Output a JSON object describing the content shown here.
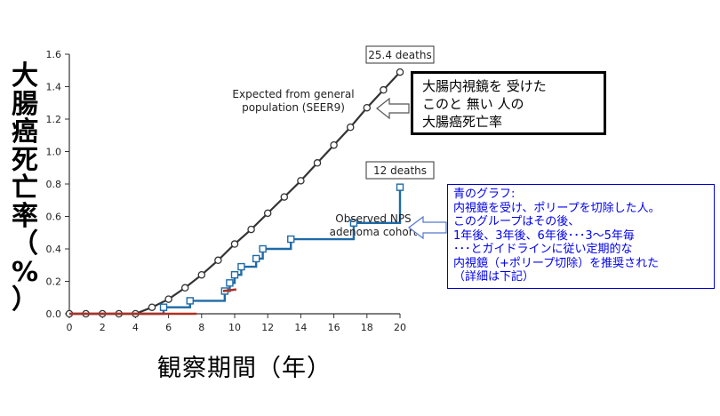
{
  "y_axis_title_chars": [
    "大",
    "腸",
    "癌",
    "死",
    "亡",
    "率",
    "（",
    "%",
    "）"
  ],
  "x_axis_title": "観察期間（年）",
  "expected_label": "Expected from general\npopulation (SEER9)",
  "observed_label": "Observed NPS\nadenoma cohort",
  "expected_deaths": "25.4 deaths",
  "observed_deaths": "12 deaths",
  "callout_expected": "大腸内視鏡を 受けた\nこのと 無い 人の\n大腸癌死亡率",
  "callout_observed": "青のグラフ:\n内視鏡を受け、ポリープを切除した人。\nこのグループはその後、\n 1年後、3年後、6年後･･･3～5年毎\n･･･とガイドラインに従い定期的な\n内視鏡（+ポリープ切除）を推奨された\n（詳細は下記）",
  "colors": {
    "expected_line": "#333333",
    "observed_line": "#1f6aa6",
    "red_segment": "#b03020",
    "callout_blue_text": "#0000ee"
  },
  "chart_data": {
    "type": "line",
    "xlim": [
      0,
      20
    ],
    "ylim": [
      0,
      1.6
    ],
    "x_ticks": [
      "0",
      "2",
      "4",
      "6",
      "8",
      "10",
      "12",
      "14",
      "16",
      "18",
      "20"
    ],
    "y_ticks": [
      "0.0",
      "0.2",
      "0.4",
      "0.6",
      "0.8",
      "1.0",
      "1.2",
      "1.4",
      "1.6"
    ],
    "xlabel": "観察期間（年）",
    "ylabel": "大腸癌死亡率（%）",
    "grid": false,
    "series": [
      {
        "name": "Expected from general population (SEER9)",
        "style": "line-circle-markers",
        "x": [
          0,
          1,
          2,
          3,
          4,
          5,
          6,
          7,
          8,
          9,
          10,
          11,
          12,
          13,
          14,
          15,
          16,
          17,
          18,
          19,
          20
        ],
        "y": [
          0,
          0,
          0,
          0,
          0,
          0.04,
          0.09,
          0.16,
          0.24,
          0.33,
          0.43,
          0.52,
          0.62,
          0.72,
          0.82,
          0.93,
          1.04,
          1.15,
          1.27,
          1.38,
          1.49
        ]
      },
      {
        "name": "Observed NPS adenoma cohort",
        "style": "step-square-markers",
        "x": [
          0,
          5.7,
          7.3,
          9.4,
          9.7,
          10.0,
          10.4,
          11.3,
          11.7,
          13.4,
          17.2,
          20
        ],
        "y": [
          0,
          0.04,
          0.08,
          0.14,
          0.19,
          0.24,
          0.29,
          0.34,
          0.4,
          0.46,
          0.56,
          0.78
        ]
      }
    ],
    "red_segments": [
      {
        "x": [
          0,
          7.7
        ],
        "y": [
          0,
          0
        ]
      },
      {
        "x": [
          9.3,
          10.1
        ],
        "y": [
          0.14,
          0.15
        ]
      }
    ]
  }
}
